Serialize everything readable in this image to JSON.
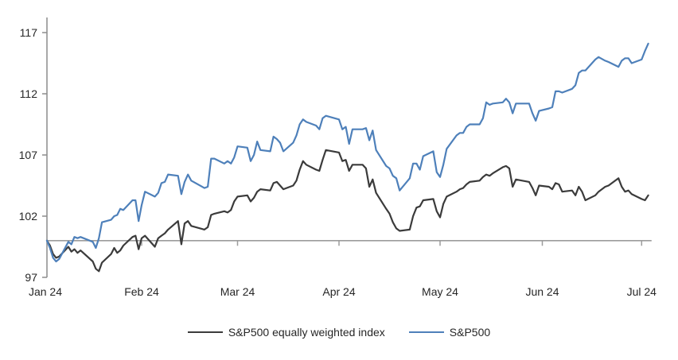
{
  "page": {
    "background": "#ffffff"
  },
  "chart_data": {
    "type": "line",
    "title": "",
    "description": "Indexed performance of S&P500 vs S&P500 equally weighted index, Jan 2024 - early Jul 2024, base 100",
    "y_axis": {
      "tick_labels": [
        "117",
        "112",
        "107",
        "102",
        "97"
      ],
      "tick_values": [
        117,
        112,
        107,
        102,
        97
      ],
      "min": 97,
      "max": 117,
      "baseline_value": 100
    },
    "x_axis": {
      "tick_labels": [
        "Jan 24",
        "Feb 24",
        "Mar 24",
        "Apr 24",
        "May 24",
        "Jun 24",
        "Jul 24"
      ],
      "tick_days": [
        0,
        31,
        60,
        91,
        121,
        152,
        182
      ]
    },
    "grid": "off",
    "legend_position": "bottom-center",
    "legend": [
      {
        "label": "S&P500 equally weighted index",
        "color": "#3b3b3b"
      },
      {
        "label": "S&P500",
        "color": "#4e80ba"
      }
    ],
    "colors": {
      "axis": "#8c8c8c",
      "baseline": "#9c9c9c",
      "label": "#262626",
      "equal_weight_line": "#3b3b3b",
      "sp500_line": "#4e80ba"
    },
    "series": [
      {
        "name": "S&P500 equally weighted index",
        "color": "#3b3b3b",
        "t": [
          0,
          1,
          2,
          3,
          4,
          7,
          8,
          9,
          10,
          11,
          15,
          16,
          17,
          18,
          21,
          22,
          23,
          24,
          25,
          28,
          29,
          30,
          31,
          32,
          35,
          36,
          37,
          38,
          39,
          42,
          43,
          44,
          45,
          46,
          50,
          51,
          52,
          53,
          56,
          57,
          58,
          59,
          60,
          63,
          64,
          65,
          66,
          67,
          70,
          71,
          72,
          73,
          74,
          77,
          78,
          79,
          80,
          81,
          84,
          85,
          86,
          87,
          91,
          92,
          93,
          94,
          95,
          98,
          99,
          100,
          101,
          102,
          105,
          106,
          107,
          108,
          109,
          112,
          113,
          114,
          115,
          116,
          119,
          120,
          121,
          122,
          123,
          126,
          127,
          128,
          129,
          130,
          133,
          134,
          135,
          136,
          137,
          140,
          141,
          142,
          143,
          144,
          148,
          149,
          150,
          151,
          154,
          155,
          156,
          157,
          158,
          161,
          162,
          163,
          164,
          165,
          168,
          169,
          171,
          172,
          175,
          176,
          177,
          178,
          179,
          182,
          183,
          184
        ],
        "values": [
          100,
          99.6,
          98.9,
          98.6,
          98.7,
          99.5,
          99.1,
          99.3,
          99,
          99.2,
          98.3,
          97.7,
          97.5,
          98.2,
          98.9,
          99.4,
          99,
          99.2,
          99.6,
          100.3,
          100.4,
          99.3,
          100.2,
          100.4,
          99.5,
          100.2,
          100.4,
          100.6,
          100.9,
          101.6,
          99.7,
          101.4,
          101.6,
          101.2,
          100.9,
          101.1,
          102.1,
          102.2,
          102.4,
          102.3,
          102.5,
          103.2,
          103.6,
          103.7,
          103.2,
          103.5,
          104,
          104.2,
          104.1,
          104.7,
          104.8,
          104.5,
          104.2,
          104.5,
          104.9,
          105.8,
          106.5,
          106.2,
          105.8,
          105.7,
          106.6,
          107.4,
          107.2,
          106.5,
          106.6,
          105.7,
          106.2,
          106.2,
          105.9,
          104.4,
          105,
          103.9,
          102.6,
          102.2,
          101.5,
          101,
          100.8,
          100.9,
          102,
          102.7,
          102.8,
          103.3,
          103.4,
          102.4,
          101.9,
          103,
          103.6,
          104,
          104.2,
          104.3,
          104.6,
          104.8,
          104.9,
          105.2,
          105.4,
          105.3,
          105.5,
          106,
          106.1,
          105.9,
          104.4,
          105,
          104.8,
          104.3,
          103.7,
          104.5,
          104.4,
          104.2,
          104.7,
          104.6,
          104,
          104.1,
          103.7,
          104.4,
          104,
          103.3,
          103.7,
          104,
          104.4,
          104.5,
          105.1,
          104.4,
          104,
          104.1,
          103.8,
          103.4,
          103.3,
          103.7
        ]
      },
      {
        "name": "S&P500",
        "color": "#4e80ba",
        "t": [
          0,
          1,
          2,
          3,
          4,
          7,
          8,
          9,
          10,
          11,
          15,
          16,
          17,
          18,
          21,
          22,
          23,
          24,
          25,
          28,
          29,
          30,
          31,
          32,
          35,
          36,
          37,
          38,
          39,
          42,
          43,
          44,
          45,
          46,
          50,
          51,
          52,
          53,
          56,
          57,
          58,
          59,
          60,
          63,
          64,
          65,
          66,
          67,
          70,
          71,
          72,
          73,
          74,
          77,
          78,
          79,
          80,
          81,
          84,
          85,
          86,
          87,
          91,
          92,
          93,
          94,
          95,
          98,
          99,
          100,
          101,
          102,
          105,
          106,
          107,
          108,
          109,
          112,
          113,
          114,
          115,
          116,
          119,
          120,
          121,
          122,
          123,
          126,
          127,
          128,
          129,
          130,
          133,
          134,
          135,
          136,
          137,
          140,
          141,
          142,
          143,
          144,
          148,
          149,
          150,
          151,
          154,
          155,
          156,
          157,
          158,
          161,
          162,
          163,
          164,
          165,
          168,
          169,
          171,
          172,
          175,
          176,
          177,
          178,
          179,
          182,
          183,
          184
        ],
        "values": [
          100,
          99.4,
          98.6,
          98.3,
          98.5,
          99.9,
          99.7,
          100.3,
          100.2,
          100.3,
          99.9,
          99.4,
          100.2,
          101.5,
          101.7,
          102,
          102.1,
          102.6,
          102.5,
          103.3,
          103.3,
          101.6,
          102.9,
          104,
          103.6,
          103.9,
          104.7,
          104.8,
          105.4,
          105.3,
          103.8,
          104.8,
          105.4,
          104.9,
          104.3,
          104.4,
          106.7,
          106.7,
          106.3,
          106.5,
          106.3,
          106.8,
          107.7,
          107.6,
          106.5,
          107,
          108.1,
          107.4,
          107.3,
          108.5,
          108.3,
          108,
          107.3,
          108,
          108.6,
          109.5,
          109.9,
          109.7,
          109.4,
          109.1,
          110,
          110.2,
          109.9,
          109.1,
          109.3,
          107.9,
          109.1,
          109.1,
          109.2,
          108.2,
          109,
          107.4,
          106.1,
          105.9,
          105.3,
          105.1,
          104.1,
          105.1,
          106.3,
          106.3,
          105.8,
          106.9,
          107.3,
          105.6,
          105.2,
          106.2,
          107.5,
          108.6,
          108.8,
          108.8,
          109.3,
          109.5,
          109.5,
          110,
          111.3,
          111.1,
          111.2,
          111.3,
          111.6,
          111.3,
          110.4,
          111.2,
          111.2,
          110.4,
          109.8,
          110.6,
          110.8,
          110.9,
          112.2,
          112.2,
          112.1,
          112.4,
          112.7,
          113.7,
          113.9,
          113.9,
          114.8,
          115,
          114.7,
          114.6,
          114.2,
          114.7,
          114.9,
          114.9,
          114.5,
          114.8,
          115.5,
          116.1
        ]
      }
    ]
  }
}
